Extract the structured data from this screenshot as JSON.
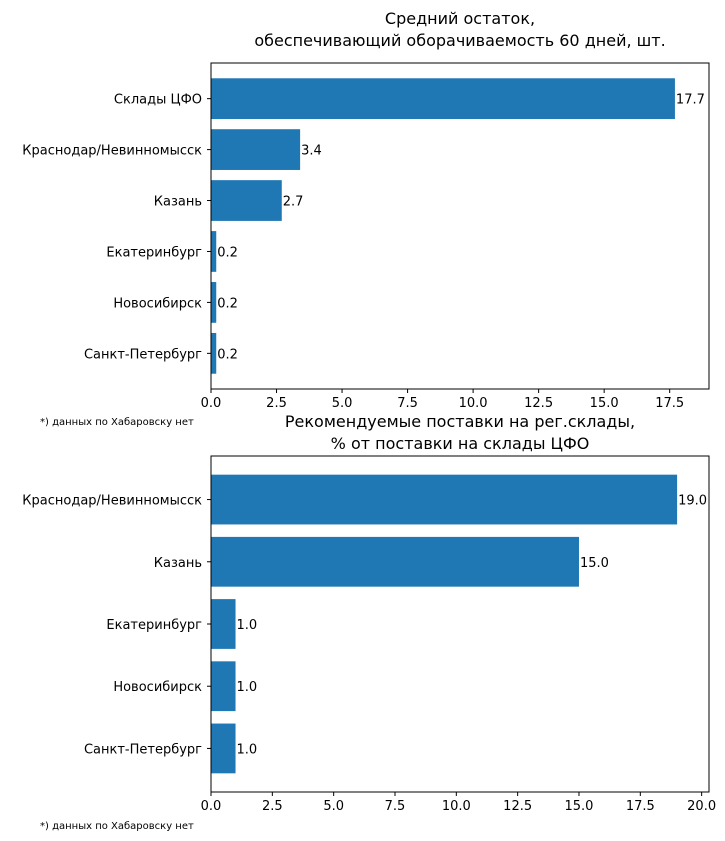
{
  "chart_data": [
    {
      "type": "bar",
      "orientation": "horizontal",
      "title": [
        "Средний остаток,",
        "обеспечивающий оборачиваемость 60 дней, шт."
      ],
      "categories": [
        "Склады ЦФО",
        "Краснодар/Невинномысск",
        "Казань",
        "Екатеринбург",
        "Новосибирск",
        "Санкт-Петербург"
      ],
      "values": [
        17.7,
        3.4,
        2.7,
        0.2,
        0.2,
        0.2
      ],
      "data_labels": [
        "17.7",
        "3.4",
        "2.7",
        "0.2",
        "0.2",
        "0.2"
      ],
      "xticks": [
        "0.0",
        "2.5",
        "5.0",
        "7.5",
        "10.0",
        "12.5",
        "15.0",
        "17.5"
      ],
      "xlim": [
        0,
        19.0
      ],
      "xlabel": "",
      "ylabel": "",
      "color": "#1f77b4",
      "grid": false,
      "footnote": "*) данных по Хабаровску нет"
    },
    {
      "type": "bar",
      "orientation": "horizontal",
      "title": [
        "Рекомендуемые поставки на рег.склады,",
        "% от поставки на склады ЦФО"
      ],
      "categories": [
        "Краснодар/Невинномысск",
        "Казань",
        "Екатеринбург",
        "Новосибирск",
        "Санкт-Петербург"
      ],
      "values": [
        19.0,
        15.0,
        1.0,
        1.0,
        1.0
      ],
      "data_labels": [
        "19.0",
        "15.0",
        "1.0",
        "1.0",
        "1.0"
      ],
      "xticks": [
        "0.0",
        "2.5",
        "5.0",
        "7.5",
        "10.0",
        "12.5",
        "15.0",
        "17.5",
        "20.0"
      ],
      "xlim": [
        0,
        20.3
      ],
      "xlabel": "",
      "ylabel": "",
      "color": "#1f77b4",
      "grid": false,
      "footnote": "*) данных по Хабаровску нет"
    }
  ]
}
